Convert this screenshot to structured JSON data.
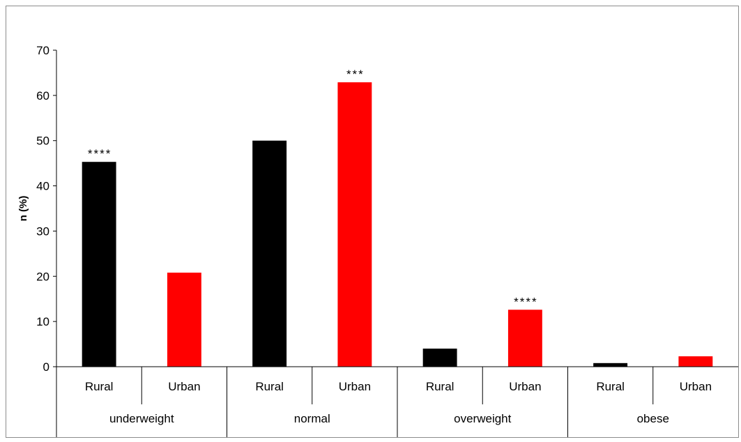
{
  "chart_data": {
    "type": "bar",
    "title": "",
    "xlabel": "",
    "ylabel": "n (%)",
    "ylim": [
      0,
      70
    ],
    "yticks": [
      0,
      10,
      20,
      30,
      40,
      50,
      60,
      70
    ],
    "grid": false,
    "legend": "none",
    "groups": [
      {
        "label": "underweight",
        "bars": [
          {
            "category": "Rural",
            "value": 45.3,
            "color": "#000000",
            "annotation": "****"
          },
          {
            "category": "Urban",
            "value": 20.8,
            "color": "#ff0000",
            "annotation": ""
          }
        ]
      },
      {
        "label": "normal",
        "bars": [
          {
            "category": "Rural",
            "value": 50.0,
            "color": "#000000",
            "annotation": ""
          },
          {
            "category": "Urban",
            "value": 62.9,
            "color": "#ff0000",
            "annotation": "***"
          }
        ]
      },
      {
        "label": "overweight",
        "bars": [
          {
            "category": "Rural",
            "value": 4.0,
            "color": "#000000",
            "annotation": ""
          },
          {
            "category": "Urban",
            "value": 12.6,
            "color": "#ff0000",
            "annotation": "****"
          }
        ]
      },
      {
        "label": "obese",
        "bars": [
          {
            "category": "Rural",
            "value": 0.8,
            "color": "#000000",
            "annotation": ""
          },
          {
            "category": "Urban",
            "value": 2.3,
            "color": "#ff0000",
            "annotation": ""
          }
        ]
      }
    ]
  }
}
